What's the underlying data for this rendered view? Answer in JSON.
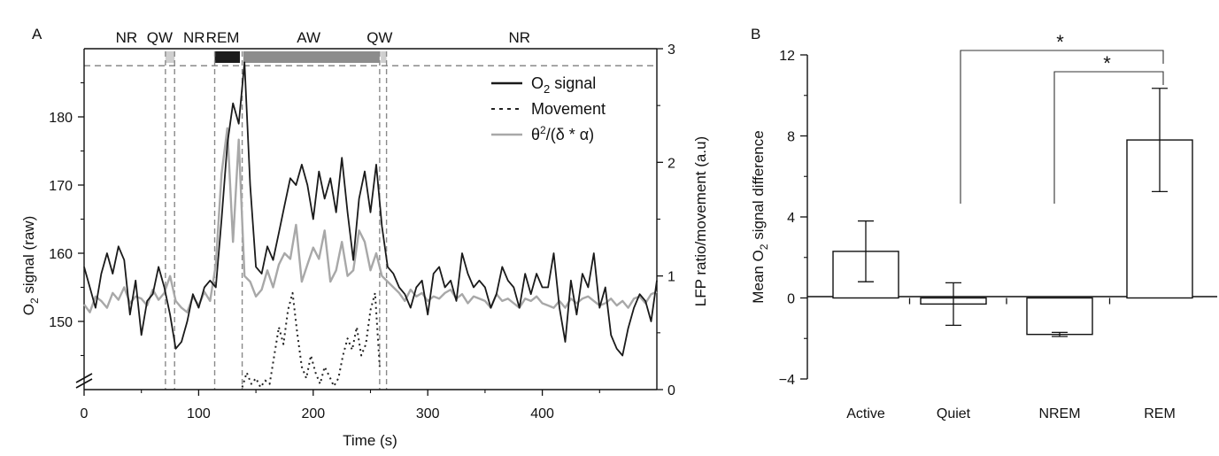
{
  "colors": {
    "o2": "#1a1a1a",
    "movement": "#222222",
    "lfp": "#a8a8a8",
    "rem_band": "#1c1c1c",
    "aw_band": "#8c8c8c",
    "qw_band": "#cfcfcf",
    "dashed": "#8a8a8a"
  },
  "chart_data": [
    {
      "panel_label": "A",
      "type": "line",
      "xlabel": "Time (s)",
      "ylabel": "O2 signal (raw)",
      "ylabel_main": "O",
      "ylabel_sub": "2",
      "ylabel_rest": " signal (raw)",
      "y2label": "LFP ratio/movement (a.u)",
      "xlim": [
        0,
        500
      ],
      "ylim": [
        140,
        190
      ],
      "y2lim": [
        0,
        3
      ],
      "xticks": [
        "0",
        "100",
        "200",
        "300",
        "400"
      ],
      "yticks": [
        "150",
        "160",
        "170",
        "180"
      ],
      "y2ticks": [
        "0",
        "1",
        "2",
        "3"
      ],
      "xtick_values": [
        0,
        100,
        200,
        300,
        400
      ],
      "ytick_values": [
        150,
        160,
        170,
        180
      ],
      "y2tick_values": [
        0,
        1,
        2,
        3
      ],
      "axis_break": true,
      "state_labels": [
        {
          "text": "NR",
          "x": 37
        },
        {
          "text": "QW",
          "x": 66
        },
        {
          "text": "NR",
          "x": 96
        },
        {
          "text": "REM",
          "x": 121
        },
        {
          "text": "AW",
          "x": 196
        },
        {
          "text": "QW",
          "x": 258
        },
        {
          "text": "NR",
          "x": 380
        }
      ],
      "state_bands": [
        {
          "state": "QW",
          "from": 71,
          "to": 79,
          "color_key": "qw_band"
        },
        {
          "state": "REM",
          "from": 114,
          "to": 136,
          "color_key": "rem_band"
        },
        {
          "state": "AW",
          "from": 139,
          "to": 258,
          "color_key": "aw_band"
        },
        {
          "state": "QW",
          "from": 259,
          "to": 264,
          "color_key": "qw_band"
        }
      ],
      "boundaries": [
        71,
        79,
        114,
        138,
        258,
        264
      ],
      "dashed_hline_y2": 2.85,
      "legend": [
        {
          "label": "O",
          "sub": "2",
          "rest": " signal",
          "style": "solid-dark"
        },
        {
          "label": "Movement",
          "sub": "",
          "rest": "",
          "style": "dotted"
        },
        {
          "label": "θ",
          "sup": "2",
          "rest": "/(δ * α)",
          "style": "solid-gray"
        }
      ],
      "series": [
        {
          "name": "O2 signal",
          "axis": "left",
          "x": [
            0,
            5,
            10,
            15,
            20,
            25,
            30,
            35,
            40,
            45,
            50,
            55,
            60,
            65,
            70,
            75,
            80,
            85,
            90,
            95,
            100,
            105,
            110,
            115,
            120,
            125,
            130,
            135,
            140,
            145,
            150,
            155,
            160,
            165,
            170,
            175,
            180,
            185,
            190,
            195,
            200,
            205,
            210,
            215,
            220,
            225,
            230,
            235,
            240,
            245,
            250,
            255,
            260,
            265,
            270,
            275,
            280,
            285,
            290,
            295,
            300,
            305,
            310,
            315,
            320,
            325,
            330,
            335,
            340,
            345,
            350,
            355,
            360,
            365,
            370,
            375,
            380,
            385,
            390,
            395,
            400,
            405,
            410,
            415,
            420,
            425,
            430,
            435,
            440,
            445,
            450,
            455,
            460,
            465,
            470,
            475,
            480,
            485,
            490,
            495,
            500
          ],
          "values": [
            158,
            155,
            152,
            157,
            160,
            157,
            161,
            159,
            151,
            156,
            148,
            153,
            154,
            158,
            155,
            151,
            146,
            147,
            150,
            154,
            152,
            155,
            156,
            155,
            165,
            176,
            182,
            179,
            188,
            170,
            158,
            157,
            161,
            159,
            163,
            167,
            171,
            170,
            173,
            170,
            165,
            172,
            168,
            171,
            166,
            174,
            166,
            159,
            168,
            172,
            166,
            173,
            164,
            158,
            157,
            155,
            154,
            152,
            155,
            156,
            151,
            157,
            158,
            155,
            156,
            153,
            160,
            157,
            155,
            156,
            155,
            152,
            154,
            158,
            156,
            155,
            152,
            157,
            154,
            157,
            155,
            155,
            160,
            152,
            147,
            156,
            151,
            157,
            155,
            160,
            152,
            155,
            148,
            146,
            145,
            149,
            152,
            154,
            153,
            150,
            156
          ]
        },
        {
          "name": "θ2/(δ * α)",
          "axis": "right",
          "x": [
            0,
            5,
            10,
            15,
            20,
            25,
            30,
            35,
            40,
            45,
            50,
            55,
            60,
            65,
            70,
            75,
            80,
            85,
            90,
            95,
            100,
            105,
            110,
            115,
            120,
            125,
            130,
            135,
            140,
            145,
            150,
            155,
            160,
            165,
            170,
            175,
            180,
            185,
            190,
            195,
            200,
            205,
            210,
            215,
            220,
            225,
            230,
            235,
            240,
            245,
            250,
            255,
            260,
            265,
            270,
            275,
            280,
            285,
            290,
            295,
            300,
            305,
            310,
            315,
            320,
            325,
            330,
            335,
            340,
            345,
            350,
            355,
            360,
            365,
            370,
            375,
            380,
            385,
            390,
            395,
            400,
            405,
            410,
            415,
            420,
            425,
            430,
            435,
            440,
            445,
            450,
            455,
            460,
            465,
            470,
            475,
            480,
            485,
            490,
            495,
            500
          ],
          "values": [
            0.75,
            0.68,
            0.82,
            0.78,
            0.72,
            0.85,
            0.79,
            0.9,
            0.76,
            0.82,
            0.8,
            0.74,
            0.88,
            0.79,
            0.85,
            1.0,
            0.78,
            0.72,
            0.68,
            0.82,
            0.74,
            0.86,
            0.78,
            1.1,
            1.9,
            2.3,
            1.3,
            2.2,
            1.0,
            0.95,
            0.82,
            0.88,
            1.05,
            0.9,
            1.1,
            1.2,
            1.15,
            1.45,
            0.95,
            1.1,
            1.25,
            1.15,
            1.4,
            0.95,
            1.05,
            1.3,
            1.0,
            1.05,
            1.4,
            1.3,
            1.05,
            1.2,
            1.0,
            0.95,
            0.9,
            0.85,
            0.78,
            0.88,
            0.82,
            0.85,
            0.78,
            0.82,
            0.8,
            0.85,
            0.88,
            0.8,
            0.84,
            0.76,
            0.82,
            0.8,
            0.78,
            0.72,
            0.84,
            0.78,
            0.8,
            0.76,
            0.72,
            0.8,
            0.78,
            0.82,
            0.76,
            0.74,
            0.72,
            0.78,
            0.72,
            0.8,
            0.76,
            0.8,
            0.82,
            0.78,
            0.74,
            0.76,
            0.8,
            0.74,
            0.78,
            0.72,
            0.8,
            0.82,
            0.76,
            0.84,
            0.86
          ]
        },
        {
          "name": "Movement",
          "axis": "right",
          "x": [
            138,
            142,
            146,
            150,
            154,
            158,
            162,
            166,
            170,
            174,
            178,
            182,
            186,
            190,
            194,
            198,
            202,
            206,
            210,
            214,
            218,
            222,
            226,
            230,
            234,
            238,
            242,
            246,
            250,
            254,
            258
          ],
          "values": [
            0.02,
            0.15,
            0.05,
            0.1,
            0.02,
            0.08,
            0.05,
            0.3,
            0.55,
            0.4,
            0.7,
            0.85,
            0.5,
            0.2,
            0.1,
            0.3,
            0.15,
            0.05,
            0.2,
            0.12,
            0.03,
            0.1,
            0.3,
            0.45,
            0.35,
            0.55,
            0.3,
            0.4,
            0.7,
            0.85,
            0.2
          ]
        }
      ]
    },
    {
      "panel_label": "B",
      "type": "bar",
      "ylabel": "Mean O2 signal difference",
      "ylabel_main": "Mean O",
      "ylabel_sub": "2",
      "ylabel_rest": " signal difference",
      "categories": [
        "Active",
        "Quiet",
        "NREM",
        "REM"
      ],
      "values": [
        2.3,
        -0.3,
        -1.8,
        7.8
      ],
      "errors": [
        1.5,
        1.05,
        0.1,
        2.55
      ],
      "ylim": [
        -4,
        12
      ],
      "yticks": [
        "−4",
        "0",
        "4",
        "8",
        "12"
      ],
      "ytick_values": [
        -4,
        0,
        4,
        8,
        12
      ],
      "significance": [
        {
          "from": "Quiet",
          "to": "REM",
          "label": "*"
        },
        {
          "from": "NREM",
          "to": "REM",
          "label": "*"
        }
      ]
    }
  ]
}
